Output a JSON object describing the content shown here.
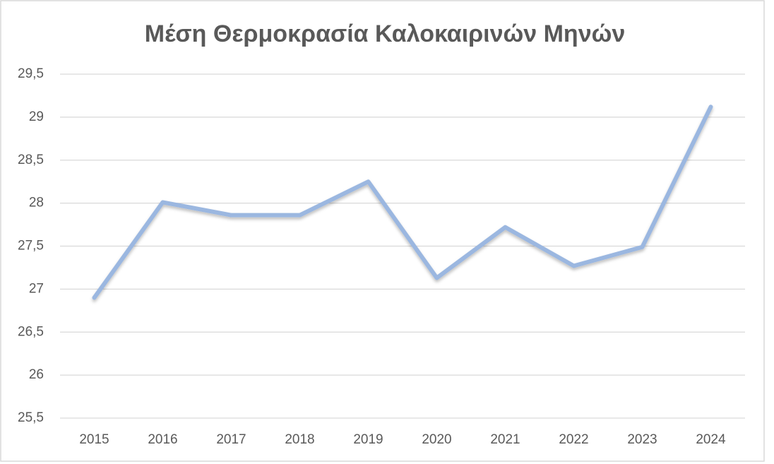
{
  "chart_data": {
    "type": "line",
    "title": "Μέση Θερμοκρασία Καλοκαιρινών Μηνών",
    "categories": [
      "2015",
      "2016",
      "2017",
      "2018",
      "2019",
      "2020",
      "2021",
      "2022",
      "2023",
      "2024"
    ],
    "values": [
      26.9,
      28.01,
      27.86,
      27.86,
      28.25,
      27.13,
      27.72,
      27.27,
      27.49,
      29.12
    ],
    "color": "#9bb7e0",
    "ylim": [
      25.5,
      29.5
    ],
    "yticks": [
      {
        "value": 25.5,
        "label": "25,5"
      },
      26,
      {
        "value": 26.5,
        "label": "26,5"
      },
      27,
      {
        "value": 27.5,
        "label": "27,5"
      },
      28,
      {
        "value": 28.5,
        "label": "28,5"
      },
      29,
      {
        "value": 29.5,
        "label": "29,5"
      }
    ],
    "grid": true
  }
}
